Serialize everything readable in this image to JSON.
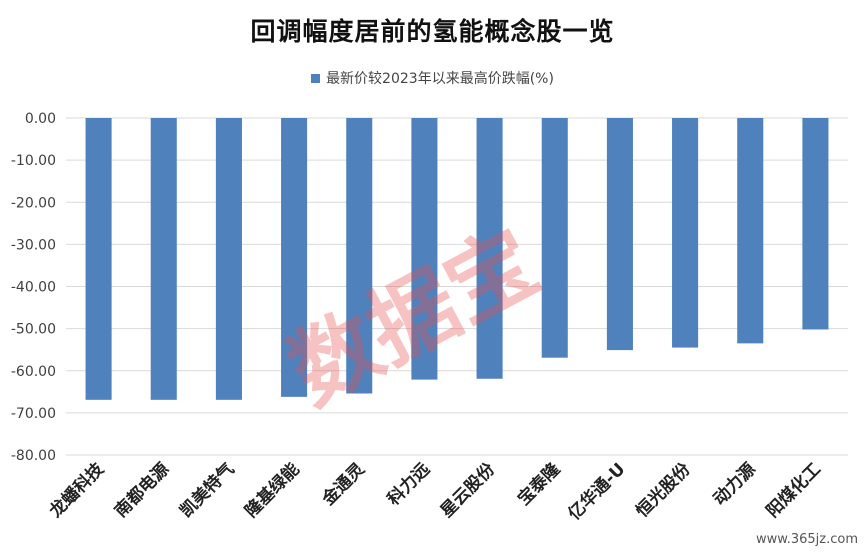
{
  "chart_data": {
    "type": "bar",
    "title": "回调幅度居前的氢能概念股一览",
    "series": [
      {
        "name": "最新价较2023年以来最高价跌幅(%)",
        "color": "#4f81bd",
        "values": [
          -66.9,
          -66.9,
          -66.9,
          -66.2,
          -65.4,
          -62.1,
          -61.9,
          -56.9,
          -55.1,
          -54.5,
          -53.5,
          -50.2
        ]
      }
    ],
    "categories": [
      "龙蟠科技",
      "南都电源",
      "凯美特气",
      "隆基绿能",
      "金通灵",
      "科力远",
      "星云股份",
      "宝泰隆",
      "亿华通-U",
      "恒光股份",
      "动力源",
      "阳煤化工"
    ],
    "ylim": [
      -80,
      0
    ],
    "y_ticks": [
      0,
      -10,
      -20,
      -30,
      -40,
      -50,
      -60,
      -70,
      -80
    ],
    "y_tick_labels": [
      "0.00",
      "-10.00",
      "-20.00",
      "-30.00",
      "-40.00",
      "-50.00",
      "-60.00",
      "-70.00",
      "-80.00"
    ],
    "grid": true,
    "legend_position": "top-center",
    "xlabel": "",
    "ylabel": ""
  },
  "watermark": "数据宝",
  "site_mark": "www.365jz.com"
}
